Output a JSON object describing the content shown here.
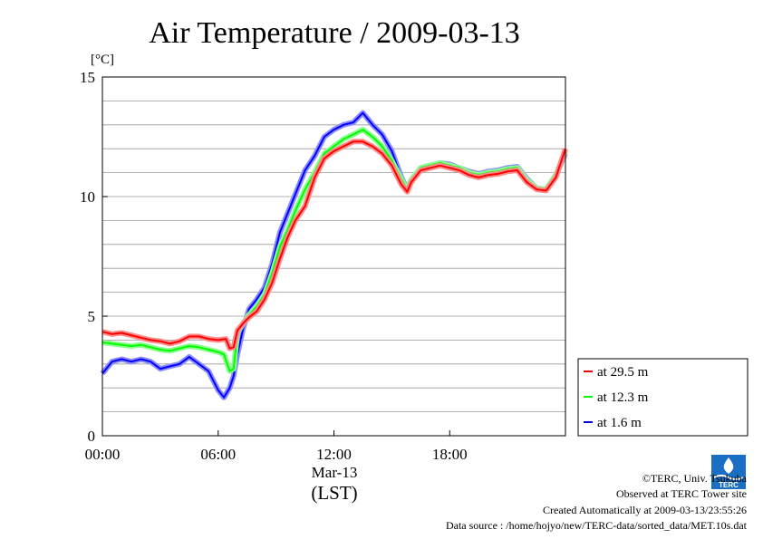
{
  "chart_data": {
    "type": "line",
    "title": "Air Temperature / 2009-03-13",
    "yunit": "[°C]",
    "ylim": [
      0,
      15
    ],
    "yticks": [
      "0",
      "5",
      "10",
      "15"
    ],
    "xlim": [
      0,
      24
    ],
    "xticks": [
      {
        "x": 0,
        "label": "00:00"
      },
      {
        "x": 6,
        "label": "06:00"
      },
      {
        "x": 12,
        "label": "12:00"
      },
      {
        "x": 18,
        "label": "18:00"
      }
    ],
    "xdate": "Mar-13",
    "xlabel": "(LST)",
    "grid": true,
    "legend_position": "right",
    "series": [
      {
        "name": "at 29.5 m",
        "color": "#ff0000",
        "points": [
          [
            0,
            4.35
          ],
          [
            0.5,
            4.25
          ],
          [
            1,
            4.3
          ],
          [
            1.5,
            4.2
          ],
          [
            2,
            4.1
          ],
          [
            2.5,
            4.0
          ],
          [
            3,
            3.95
          ],
          [
            3.5,
            3.85
          ],
          [
            4,
            3.95
          ],
          [
            4.5,
            4.15
          ],
          [
            5,
            4.15
          ],
          [
            5.5,
            4.05
          ],
          [
            6,
            4.0
          ],
          [
            6.4,
            4.05
          ],
          [
            6.6,
            3.65
          ],
          [
            6.8,
            3.7
          ],
          [
            7,
            4.4
          ],
          [
            7.3,
            4.7
          ],
          [
            7.6,
            4.95
          ],
          [
            8,
            5.2
          ],
          [
            8.4,
            5.7
          ],
          [
            8.8,
            6.4
          ],
          [
            9.2,
            7.4
          ],
          [
            9.6,
            8.3
          ],
          [
            10,
            9.0
          ],
          [
            10.5,
            9.6
          ],
          [
            11,
            10.8
          ],
          [
            11.5,
            11.6
          ],
          [
            12,
            11.9
          ],
          [
            12.5,
            12.1
          ],
          [
            13,
            12.3
          ],
          [
            13.5,
            12.3
          ],
          [
            14,
            12.1
          ],
          [
            14.5,
            11.8
          ],
          [
            15,
            11.3
          ],
          [
            15.5,
            10.5
          ],
          [
            15.8,
            10.2
          ],
          [
            16,
            10.6
          ],
          [
            16.5,
            11.1
          ],
          [
            17,
            11.2
          ],
          [
            17.5,
            11.3
          ],
          [
            18,
            11.2
          ],
          [
            18.5,
            11.1
          ],
          [
            19,
            10.9
          ],
          [
            19.5,
            10.8
          ],
          [
            20,
            10.9
          ],
          [
            20.5,
            10.95
          ],
          [
            21,
            11.05
          ],
          [
            21.5,
            11.1
          ],
          [
            22,
            10.6
          ],
          [
            22.5,
            10.3
          ],
          [
            23,
            10.25
          ],
          [
            23.5,
            10.8
          ],
          [
            24,
            12.0
          ]
        ]
      },
      {
        "name": "at 12.3 m",
        "color": "#00ff00",
        "points": [
          [
            0,
            3.9
          ],
          [
            0.5,
            3.85
          ],
          [
            1,
            3.8
          ],
          [
            1.5,
            3.75
          ],
          [
            2,
            3.8
          ],
          [
            2.5,
            3.7
          ],
          [
            3,
            3.6
          ],
          [
            3.5,
            3.55
          ],
          [
            4,
            3.65
          ],
          [
            4.5,
            3.75
          ],
          [
            5,
            3.7
          ],
          [
            5.5,
            3.6
          ],
          [
            6,
            3.5
          ],
          [
            6.3,
            3.4
          ],
          [
            6.6,
            2.7
          ],
          [
            6.8,
            2.8
          ],
          [
            7,
            4.3
          ],
          [
            7.3,
            4.7
          ],
          [
            7.6,
            5.05
          ],
          [
            8,
            5.4
          ],
          [
            8.4,
            5.9
          ],
          [
            8.8,
            6.8
          ],
          [
            9.2,
            7.9
          ],
          [
            9.6,
            8.6
          ],
          [
            10,
            9.4
          ],
          [
            10.5,
            10.3
          ],
          [
            11,
            11.0
          ],
          [
            11.5,
            11.8
          ],
          [
            12,
            12.1
          ],
          [
            12.5,
            12.4
          ],
          [
            13,
            12.6
          ],
          [
            13.5,
            12.8
          ],
          [
            14,
            12.5
          ],
          [
            14.5,
            12.1
          ],
          [
            15,
            11.5
          ],
          [
            15.5,
            10.7
          ],
          [
            15.8,
            10.3
          ],
          [
            16,
            10.7
          ],
          [
            16.5,
            11.2
          ],
          [
            17,
            11.3
          ],
          [
            17.5,
            11.4
          ],
          [
            18,
            11.3
          ],
          [
            18.5,
            11.2
          ],
          [
            19,
            11.0
          ],
          [
            19.5,
            10.9
          ],
          [
            20,
            11.0
          ],
          [
            20.5,
            11.05
          ],
          [
            21,
            11.15
          ],
          [
            21.5,
            11.2
          ],
          [
            22,
            10.7
          ],
          [
            22.5,
            10.35
          ],
          [
            23,
            10.3
          ],
          [
            23.5,
            10.9
          ],
          [
            24,
            11.9
          ]
        ]
      },
      {
        "name": "at 1.6 m",
        "color": "#0000ff",
        "points": [
          [
            0,
            2.6
          ],
          [
            0.5,
            3.1
          ],
          [
            1,
            3.2
          ],
          [
            1.5,
            3.1
          ],
          [
            2,
            3.2
          ],
          [
            2.5,
            3.1
          ],
          [
            3,
            2.8
          ],
          [
            3.5,
            2.9
          ],
          [
            4,
            3.0
          ],
          [
            4.5,
            3.3
          ],
          [
            5,
            3.0
          ],
          [
            5.5,
            2.7
          ],
          [
            6,
            1.9
          ],
          [
            6.3,
            1.6
          ],
          [
            6.6,
            2.0
          ],
          [
            6.8,
            2.5
          ],
          [
            7,
            3.4
          ],
          [
            7.3,
            4.5
          ],
          [
            7.6,
            5.3
          ],
          [
            8,
            5.7
          ],
          [
            8.4,
            6.2
          ],
          [
            8.8,
            7.2
          ],
          [
            9.2,
            8.5
          ],
          [
            9.6,
            9.3
          ],
          [
            10,
            10.1
          ],
          [
            10.5,
            11.1
          ],
          [
            11,
            11.7
          ],
          [
            11.5,
            12.5
          ],
          [
            12,
            12.8
          ],
          [
            12.5,
            13.0
          ],
          [
            13,
            13.1
          ],
          [
            13.5,
            13.5
          ],
          [
            14,
            13.0
          ],
          [
            14.5,
            12.6
          ],
          [
            15,
            11.9
          ],
          [
            15.5,
            10.8
          ],
          [
            15.8,
            10.3
          ],
          [
            16,
            10.7
          ],
          [
            16.5,
            11.2
          ],
          [
            17,
            11.3
          ],
          [
            17.5,
            11.4
          ],
          [
            18,
            11.35
          ],
          [
            18.5,
            11.2
          ],
          [
            19,
            11.05
          ],
          [
            19.5,
            10.95
          ],
          [
            20,
            11.05
          ],
          [
            20.5,
            11.1
          ],
          [
            21,
            11.2
          ],
          [
            21.5,
            11.25
          ],
          [
            22,
            10.75
          ],
          [
            22.5,
            10.35
          ],
          [
            23,
            10.3
          ],
          [
            23.5,
            10.9
          ],
          [
            24,
            11.8
          ]
        ]
      }
    ]
  },
  "footer": {
    "copyright": "©TERC, Univ. Tsukuba",
    "site": "Observed at TERC Tower site",
    "created": "Created Automatically at 2009-03-13/23:55:26",
    "source": "Data source : /home/hojyo/new/TERC-data/sorted_data/MET.10s.dat"
  },
  "logo": {
    "text": "TERC",
    "color": "#1a6fc4"
  }
}
